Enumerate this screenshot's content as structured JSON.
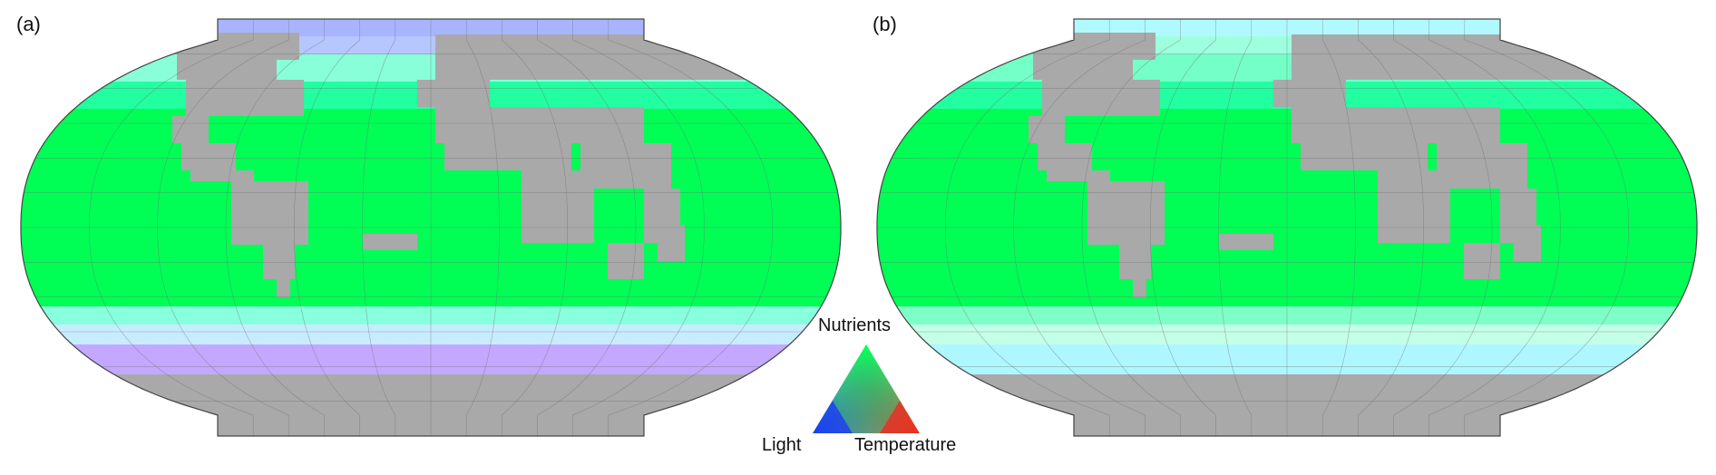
{
  "panels": [
    {
      "label": "(a)",
      "variant": "a"
    },
    {
      "label": "(b)",
      "variant": "b"
    }
  ],
  "legend": {
    "top": "Nutrients",
    "left": "Light",
    "right": "Temperature"
  },
  "colors": {
    "land": "#a9a9a9",
    "ocean_limitation": "#00ff55",
    "grid": "#6e6e6e",
    "outline": "#444444",
    "legend_nutrients": "#00ff55",
    "legend_light": "#1a2dff",
    "legend_temperature": "#ff1a1a"
  }
}
